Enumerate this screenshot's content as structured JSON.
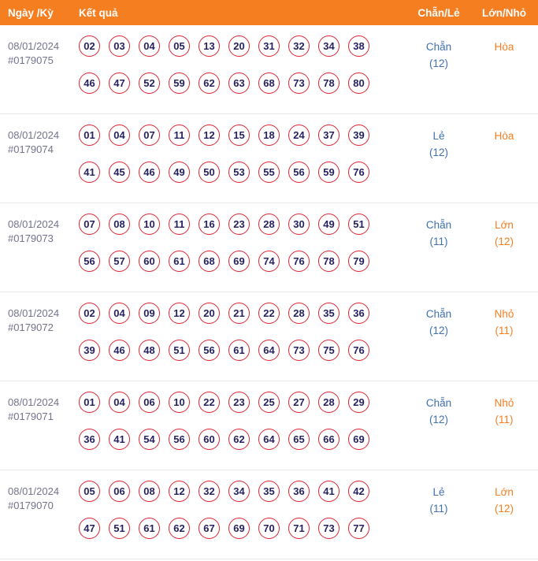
{
  "header": {
    "col_date": "Ngày /Kỳ",
    "col_result": "Kết quả",
    "col_evenodd": "Chẵn/Lẻ",
    "col_bigsmall": "Lớn/Nhỏ"
  },
  "colors": {
    "header_bg": "#f57e21",
    "separator": "#e6e6e9",
    "date_color": "#73738c",
    "ball_border": "#da2532",
    "ball_text": "#262262",
    "evenodd_color": "#4070ad",
    "bigsmall_color": "#f57e21"
  },
  "rows": [
    {
      "date": "08/01/2024",
      "draw_id": "#0179075",
      "numbers_line1": [
        "02",
        "03",
        "04",
        "05",
        "13",
        "20",
        "31",
        "32",
        "34",
        "38"
      ],
      "numbers_line2": [
        "46",
        "47",
        "52",
        "59",
        "62",
        "63",
        "68",
        "73",
        "78",
        "80"
      ],
      "evenodd": "Chẵn",
      "evenodd_count": "(12)",
      "bigsmall": "Hòa",
      "bigsmall_count": ""
    },
    {
      "date": "08/01/2024",
      "draw_id": "#0179074",
      "numbers_line1": [
        "01",
        "04",
        "07",
        "11",
        "12",
        "15",
        "18",
        "24",
        "37",
        "39"
      ],
      "numbers_line2": [
        "41",
        "45",
        "46",
        "49",
        "50",
        "53",
        "55",
        "56",
        "59",
        "76"
      ],
      "evenodd": "Lẻ",
      "evenodd_count": "(12)",
      "bigsmall": "Hòa",
      "bigsmall_count": ""
    },
    {
      "date": "08/01/2024",
      "draw_id": "#0179073",
      "numbers_line1": [
        "07",
        "08",
        "10",
        "11",
        "16",
        "23",
        "28",
        "30",
        "49",
        "51"
      ],
      "numbers_line2": [
        "56",
        "57",
        "60",
        "61",
        "68",
        "69",
        "74",
        "76",
        "78",
        "79"
      ],
      "evenodd": "Chẵn",
      "evenodd_count": "(11)",
      "bigsmall": "Lớn",
      "bigsmall_count": "(12)"
    },
    {
      "date": "08/01/2024",
      "draw_id": "#0179072",
      "numbers_line1": [
        "02",
        "04",
        "09",
        "12",
        "20",
        "21",
        "22",
        "28",
        "35",
        "36"
      ],
      "numbers_line2": [
        "39",
        "46",
        "48",
        "51",
        "56",
        "61",
        "64",
        "73",
        "75",
        "76"
      ],
      "evenodd": "Chẵn",
      "evenodd_count": "(12)",
      "bigsmall": "Nhỏ",
      "bigsmall_count": "(11)"
    },
    {
      "date": "08/01/2024",
      "draw_id": "#0179071",
      "numbers_line1": [
        "01",
        "04",
        "06",
        "10",
        "22",
        "23",
        "25",
        "27",
        "28",
        "29"
      ],
      "numbers_line2": [
        "36",
        "41",
        "54",
        "56",
        "60",
        "62",
        "64",
        "65",
        "66",
        "69"
      ],
      "evenodd": "Chẵn",
      "evenodd_count": "(12)",
      "bigsmall": "Nhỏ",
      "bigsmall_count": "(11)"
    },
    {
      "date": "08/01/2024",
      "draw_id": "#0179070",
      "numbers_line1": [
        "05",
        "06",
        "08",
        "12",
        "32",
        "34",
        "35",
        "36",
        "41",
        "42"
      ],
      "numbers_line2": [
        "47",
        "51",
        "61",
        "62",
        "67",
        "69",
        "70",
        "71",
        "73",
        "77"
      ],
      "evenodd": "Lẻ",
      "evenodd_count": "(11)",
      "bigsmall": "Lớn",
      "bigsmall_count": "(12)"
    }
  ]
}
